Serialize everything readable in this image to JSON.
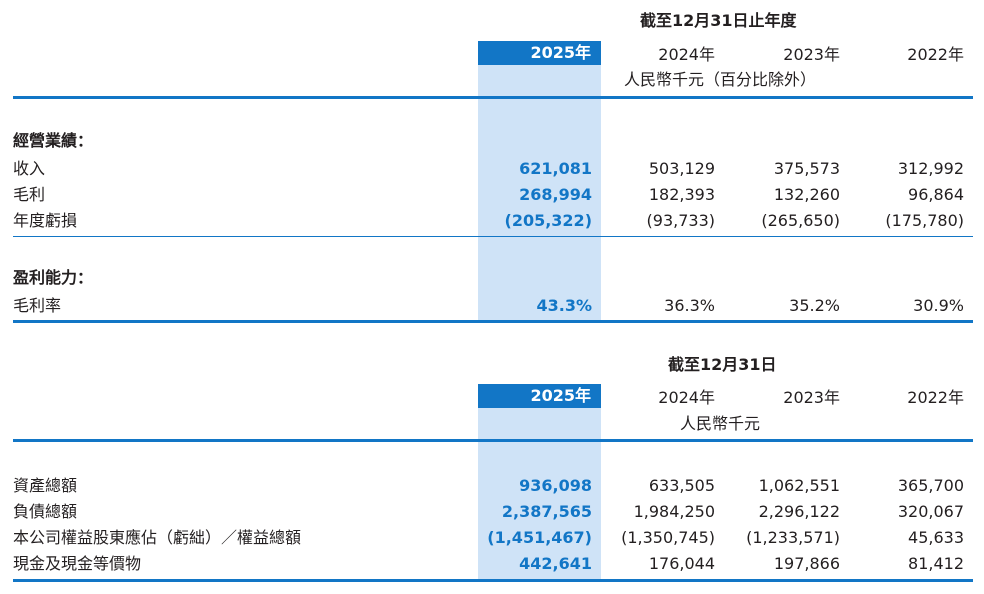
{
  "top": {
    "header": "截至12月31日止年度",
    "years": [
      "2025年",
      "2024年",
      "2023年",
      "2022年"
    ],
    "unit": "人民幣千元（百分比除外）",
    "results": {
      "title": "經營業績：",
      "rows": [
        {
          "label": "收入",
          "values": [
            "621,081",
            "503,129",
            "375,573",
            "312,992"
          ]
        },
        {
          "label": "毛利",
          "values": [
            "268,994",
            "182,393",
            "132,260",
            "96,864"
          ]
        },
        {
          "label": "年度虧損",
          "values": [
            "(205,322)",
            "(93,733)",
            "(265,650)",
            "(175,780)"
          ]
        }
      ]
    },
    "profitability": {
      "title": "盈利能力：",
      "rows": [
        {
          "label": "毛利率",
          "values": [
            "43.3%",
            "36.3%",
            "35.2%",
            "30.9%"
          ]
        }
      ]
    }
  },
  "bottom": {
    "header": "截至12月31日",
    "years": [
      "2025年",
      "2024年",
      "2023年",
      "2022年"
    ],
    "unit": "人民幣千元",
    "rows": [
      {
        "label": "資產總額",
        "values": [
          "936,098",
          "633,505",
          "1,062,551",
          "365,700"
        ]
      },
      {
        "label": "負債總額",
        "values": [
          "2,387,565",
          "1,984,250",
          "2,296,122",
          "320,067"
        ]
      },
      {
        "label": "本公司權益股東應佔（虧絀）／權益總額",
        "values": [
          "(1,451,467)",
          "(1,350,745)",
          "(1,233,571)",
          "45,633"
        ]
      },
      {
        "label": "現金及現金等價物",
        "values": [
          "442,641",
          "176,044",
          "197,866",
          "81,412"
        ]
      }
    ]
  }
}
